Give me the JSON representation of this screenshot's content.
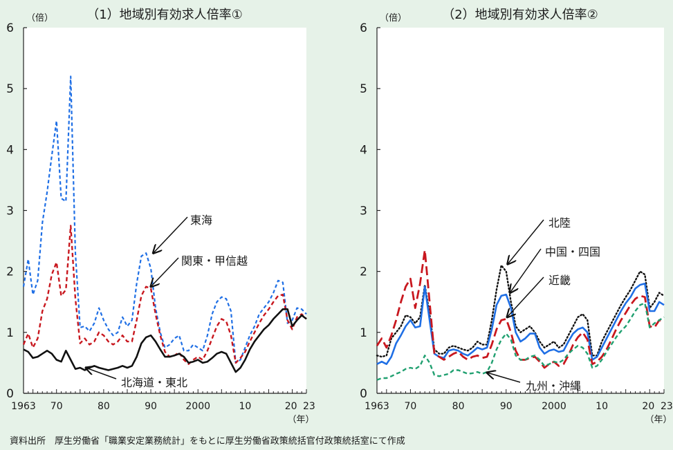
{
  "source_note": "資料出所　厚生労働省「職業安定業務統計」をもとに厚生労働省政策統括官付政策統括室にて作成",
  "colors": {
    "background": "#e6f2e8",
    "plot_bg": "#ffffff",
    "tokai": "#1f6fe5",
    "kanto": "#c8171e",
    "hokkaido": "#111111",
    "hokuriku": "#111111",
    "chugoku": "#1f6fe5",
    "kinki": "#c8171e",
    "kyushu": "#20a070"
  },
  "chart_data": [
    {
      "type": "line",
      "title": "（1）地域別有効求人倍率①",
      "unit_label": "（倍）",
      "x_unit_label": "（年）",
      "xlim": [
        1963,
        2023
      ],
      "ylim": [
        0,
        6
      ],
      "y_ticks": [
        "0",
        "1",
        "2",
        "3",
        "4",
        "5",
        "6"
      ],
      "x_ticks": [
        {
          "value": 1963,
          "label": "1963"
        },
        {
          "value": 1970,
          "label": "70"
        },
        {
          "value": 1980,
          "label": "80"
        },
        {
          "value": 1990,
          "label": "90"
        },
        {
          "value": 2000,
          "label": "2000"
        },
        {
          "value": 2010,
          "label": "10"
        },
        {
          "value": 2020,
          "label": "20"
        },
        {
          "value": 2023,
          "label": "23"
        }
      ],
      "grid": false,
      "series": [
        {
          "name": "東海",
          "color": "#1f6fe5",
          "style": "short-dash",
          "x": [
            1963,
            1964,
            1965,
            1966,
            1967,
            1968,
            1969,
            1970,
            1971,
            1972,
            1973,
            1974,
            1975,
            1976,
            1977,
            1978,
            1979,
            1980,
            1981,
            1982,
            1983,
            1984,
            1985,
            1986,
            1987,
            1988,
            1989,
            1990,
            1991,
            1992,
            1993,
            1994,
            1995,
            1996,
            1997,
            1998,
            1999,
            2000,
            2001,
            2002,
            2003,
            2004,
            2005,
            2006,
            2007,
            2008,
            2009,
            2010,
            2011,
            2012,
            2013,
            2014,
            2015,
            2016,
            2017,
            2018,
            2019,
            2020,
            2021,
            2022,
            2023
          ],
          "y": [
            1.75,
            2.2,
            1.62,
            1.85,
            2.8,
            3.3,
            3.9,
            4.47,
            3.2,
            3.15,
            5.2,
            2.3,
            1.08,
            1.1,
            1.02,
            1.15,
            1.4,
            1.2,
            1.05,
            0.95,
            1.0,
            1.25,
            1.1,
            1.2,
            1.8,
            2.25,
            2.3,
            2.05,
            1.4,
            1.0,
            0.75,
            0.8,
            0.9,
            0.95,
            0.7,
            0.7,
            0.8,
            0.75,
            0.7,
            0.95,
            1.3,
            1.5,
            1.58,
            1.55,
            1.35,
            0.5,
            0.55,
            0.75,
            0.95,
            1.1,
            1.3,
            1.4,
            1.5,
            1.65,
            1.85,
            1.82,
            1.15,
            1.2,
            1.4,
            1.38,
            1.3
          ]
        },
        {
          "name": "関東・甲信越",
          "color": "#c8171e",
          "style": "dash",
          "x": [
            1963,
            1964,
            1965,
            1966,
            1967,
            1968,
            1969,
            1970,
            1971,
            1972,
            1973,
            1974,
            1975,
            1976,
            1977,
            1978,
            1979,
            1980,
            1981,
            1982,
            1983,
            1984,
            1985,
            1986,
            1987,
            1988,
            1989,
            1990,
            1991,
            1992,
            1993,
            1994,
            1995,
            1996,
            1997,
            1998,
            1999,
            2000,
            2001,
            2002,
            2003,
            2004,
            2005,
            2006,
            2007,
            2008,
            2009,
            2010,
            2011,
            2012,
            2013,
            2014,
            2015,
            2016,
            2017,
            2018,
            2019,
            2020,
            2021,
            2022,
            2023
          ],
          "y": [
            0.8,
            0.98,
            0.75,
            0.9,
            1.35,
            1.55,
            1.95,
            2.15,
            1.6,
            1.7,
            2.75,
            1.55,
            0.82,
            0.9,
            0.8,
            0.85,
            1.0,
            0.95,
            0.85,
            0.8,
            0.85,
            0.95,
            0.85,
            0.85,
            1.2,
            1.6,
            1.75,
            1.72,
            1.3,
            0.95,
            0.68,
            0.6,
            0.62,
            0.67,
            0.55,
            0.48,
            0.55,
            0.6,
            0.55,
            0.7,
            0.9,
            1.1,
            1.22,
            1.18,
            0.95,
            0.5,
            0.58,
            0.68,
            0.85,
            1.0,
            1.15,
            1.28,
            1.38,
            1.5,
            1.6,
            1.62,
            1.2,
            1.05,
            1.25,
            1.3,
            1.22
          ]
        },
        {
          "name": "北海道・東北",
          "color": "#111111",
          "style": "solid",
          "x": [
            1963,
            1964,
            1965,
            1966,
            1967,
            1968,
            1969,
            1970,
            1971,
            1972,
            1973,
            1974,
            1975,
            1976,
            1977,
            1978,
            1979,
            1980,
            1981,
            1982,
            1983,
            1984,
            1985,
            1986,
            1987,
            1988,
            1989,
            1990,
            1991,
            1992,
            1993,
            1994,
            1995,
            1996,
            1997,
            1998,
            1999,
            2000,
            2001,
            2002,
            2003,
            2004,
            2005,
            2006,
            2007,
            2008,
            2009,
            2010,
            2011,
            2012,
            2013,
            2014,
            2015,
            2016,
            2017,
            2018,
            2019,
            2020,
            2021,
            2022,
            2023
          ],
          "y": [
            0.72,
            0.68,
            0.58,
            0.6,
            0.65,
            0.7,
            0.65,
            0.55,
            0.52,
            0.7,
            0.55,
            0.4,
            0.42,
            0.38,
            0.42,
            0.45,
            0.42,
            0.4,
            0.38,
            0.4,
            0.42,
            0.45,
            0.42,
            0.45,
            0.6,
            0.82,
            0.92,
            0.95,
            0.85,
            0.72,
            0.6,
            0.6,
            0.62,
            0.65,
            0.6,
            0.5,
            0.52,
            0.55,
            0.5,
            0.52,
            0.58,
            0.65,
            0.68,
            0.65,
            0.5,
            0.35,
            0.42,
            0.55,
            0.72,
            0.85,
            0.95,
            1.05,
            1.12,
            1.22,
            1.3,
            1.38,
            1.38,
            1.1,
            1.2,
            1.28,
            1.22
          ]
        }
      ],
      "annotations": [
        {
          "label": "東海",
          "points_to": 1990
        },
        {
          "label": "関東・甲信越",
          "points_to": 1990
        },
        {
          "label": "北海道・東北",
          "points_to": 1976
        }
      ]
    },
    {
      "type": "line",
      "title": "（2）地域別有効求人倍率②",
      "unit_label": "（倍）",
      "x_unit_label": "（年）",
      "xlim": [
        1963,
        2023
      ],
      "ylim": [
        0,
        6
      ],
      "y_ticks": [
        "0",
        "1",
        "2",
        "3",
        "4",
        "5",
        "6"
      ],
      "x_ticks": [
        {
          "value": 1963,
          "label": "1963"
        },
        {
          "value": 1970,
          "label": "70"
        },
        {
          "value": 1980,
          "label": "80"
        },
        {
          "value": 1990,
          "label": "90"
        },
        {
          "value": 2000,
          "label": "2000"
        },
        {
          "value": 2010,
          "label": "10"
        },
        {
          "value": 2020,
          "label": "20"
        },
        {
          "value": 2023,
          "label": "23"
        }
      ],
      "grid": false,
      "series": [
        {
          "name": "北陸",
          "color": "#111111",
          "style": "dotted",
          "x": [
            1963,
            1964,
            1965,
            1966,
            1967,
            1968,
            1969,
            1970,
            1971,
            1972,
            1973,
            1974,
            1975,
            1976,
            1977,
            1978,
            1979,
            1980,
            1981,
            1982,
            1983,
            1984,
            1985,
            1986,
            1987,
            1988,
            1989,
            1990,
            1991,
            1992,
            1993,
            1994,
            1995,
            1996,
            1997,
            1998,
            1999,
            2000,
            2001,
            2002,
            2003,
            2004,
            2005,
            2006,
            2007,
            2008,
            2009,
            2010,
            2011,
            2012,
            2013,
            2014,
            2015,
            2016,
            2017,
            2018,
            2019,
            2020,
            2021,
            2022,
            2023
          ],
          "y": [
            0.62,
            0.6,
            0.62,
            0.9,
            1.0,
            1.1,
            1.28,
            1.25,
            1.15,
            1.25,
            1.78,
            1.3,
            0.72,
            0.65,
            0.65,
            0.75,
            0.78,
            0.75,
            0.72,
            0.7,
            0.75,
            0.85,
            0.8,
            0.8,
            1.2,
            1.7,
            2.1,
            2.0,
            1.5,
            1.1,
            1.0,
            1.05,
            1.1,
            1.0,
            0.85,
            0.75,
            0.8,
            0.85,
            0.75,
            0.8,
            0.95,
            1.1,
            1.25,
            1.3,
            1.2,
            0.62,
            0.62,
            0.85,
            1.0,
            1.15,
            1.3,
            1.45,
            1.58,
            1.7,
            1.85,
            2.0,
            1.95,
            1.4,
            1.5,
            1.65,
            1.6
          ]
        },
        {
          "name": "中国・四国",
          "color": "#1f6fe5",
          "style": "solid",
          "x": [
            1963,
            1964,
            1965,
            1966,
            1967,
            1968,
            1969,
            1970,
            1971,
            1972,
            1973,
            1974,
            1975,
            1976,
            1977,
            1978,
            1979,
            1980,
            1981,
            1982,
            1983,
            1984,
            1985,
            1986,
            1987,
            1988,
            1989,
            1990,
            1991,
            1992,
            1993,
            1994,
            1995,
            1996,
            1997,
            1998,
            1999,
            2000,
            2001,
            2002,
            2003,
            2004,
            2005,
            2006,
            2007,
            2008,
            2009,
            2010,
            2011,
            2012,
            2013,
            2014,
            2015,
            2016,
            2017,
            2018,
            2019,
            2020,
            2021,
            2022,
            2023
          ],
          "y": [
            0.48,
            0.52,
            0.48,
            0.6,
            0.82,
            0.95,
            1.1,
            1.2,
            1.08,
            1.1,
            1.75,
            1.2,
            0.65,
            0.6,
            0.58,
            0.7,
            0.72,
            0.7,
            0.65,
            0.62,
            0.68,
            0.75,
            0.72,
            0.75,
            1.05,
            1.45,
            1.6,
            1.62,
            1.4,
            1.0,
            0.85,
            0.9,
            0.98,
            0.98,
            0.75,
            0.65,
            0.7,
            0.72,
            0.68,
            0.7,
            0.85,
            0.98,
            1.05,
            1.08,
            1.0,
            0.55,
            0.6,
            0.75,
            0.9,
            1.05,
            1.2,
            1.35,
            1.48,
            1.58,
            1.72,
            1.78,
            1.8,
            1.35,
            1.35,
            1.5,
            1.45
          ]
        },
        {
          "name": "近畿",
          "color": "#c8171e",
          "style": "long-dash",
          "x": [
            1963,
            1964,
            1965,
            1966,
            1967,
            1968,
            1969,
            1970,
            1971,
            1972,
            1973,
            1974,
            1975,
            1976,
            1977,
            1978,
            1979,
            1980,
            1981,
            1982,
            1983,
            1984,
            1985,
            1986,
            1987,
            1988,
            1989,
            1990,
            1991,
            1992,
            1993,
            1994,
            1995,
            1996,
            1997,
            1998,
            1999,
            2000,
            2001,
            2002,
            2003,
            2004,
            2005,
            2006,
            2007,
            2008,
            2009,
            2010,
            2011,
            2012,
            2013,
            2014,
            2015,
            2016,
            2017,
            2018,
            2019,
            2020,
            2021,
            2022,
            2023
          ],
          "y": [
            0.78,
            0.9,
            0.75,
            0.95,
            1.2,
            1.5,
            1.75,
            1.88,
            1.4,
            1.8,
            2.35,
            1.5,
            0.65,
            0.6,
            0.55,
            0.6,
            0.65,
            0.68,
            0.6,
            0.55,
            0.6,
            0.62,
            0.58,
            0.6,
            0.8,
            1.05,
            1.2,
            1.22,
            1.0,
            0.7,
            0.55,
            0.55,
            0.58,
            0.6,
            0.52,
            0.42,
            0.48,
            0.52,
            0.45,
            0.48,
            0.62,
            0.8,
            0.92,
            1.0,
            0.88,
            0.48,
            0.52,
            0.6,
            0.72,
            0.88,
            1.05,
            1.2,
            1.32,
            1.45,
            1.55,
            1.6,
            1.58,
            1.1,
            1.08,
            1.2,
            1.18
          ]
        },
        {
          "name": "九州・沖縄",
          "color": "#20a070",
          "style": "dash",
          "x": [
            1963,
            1964,
            1965,
            1966,
            1967,
            1968,
            1969,
            1970,
            1971,
            1972,
            1973,
            1974,
            1975,
            1976,
            1977,
            1978,
            1979,
            1980,
            1981,
            1982,
            1983,
            1984,
            1985,
            1986,
            1987,
            1988,
            1989,
            1990,
            1991,
            1992,
            1993,
            1994,
            1995,
            1996,
            1997,
            1998,
            1999,
            2000,
            2001,
            2002,
            2003,
            2004,
            2005,
            2006,
            2007,
            2008,
            2009,
            2010,
            2011,
            2012,
            2013,
            2014,
            2015,
            2016,
            2017,
            2018,
            2019,
            2020,
            2021,
            2022,
            2023
          ],
          "y": [
            0.22,
            0.25,
            0.25,
            0.28,
            0.32,
            0.35,
            0.4,
            0.42,
            0.4,
            0.45,
            0.62,
            0.5,
            0.3,
            0.28,
            0.3,
            0.32,
            0.38,
            0.38,
            0.35,
            0.32,
            0.33,
            0.35,
            0.32,
            0.35,
            0.5,
            0.72,
            0.88,
            0.98,
            0.88,
            0.62,
            0.55,
            0.55,
            0.6,
            0.62,
            0.55,
            0.45,
            0.48,
            0.52,
            0.5,
            0.55,
            0.65,
            0.72,
            0.78,
            0.75,
            0.65,
            0.42,
            0.45,
            0.55,
            0.68,
            0.8,
            0.92,
            1.02,
            1.1,
            1.22,
            1.35,
            1.45,
            1.48,
            1.08,
            1.15,
            1.2,
            1.25
          ]
        }
      ],
      "annotations": [
        {
          "label": "北陸",
          "points_to": 1990
        },
        {
          "label": "中国・四国",
          "points_to": 1991
        },
        {
          "label": "近畿",
          "points_to": 1990
        },
        {
          "label": "九州・沖縄",
          "points_to": 1986
        }
      ]
    }
  ]
}
